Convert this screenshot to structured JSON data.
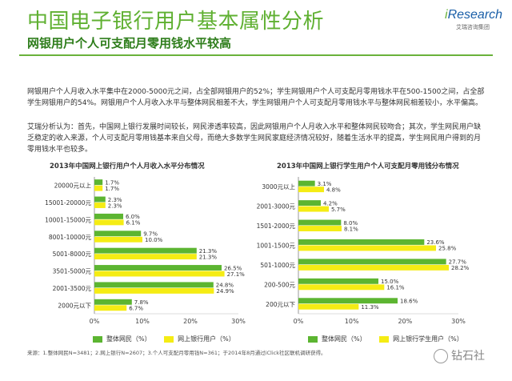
{
  "header": {
    "title": "中国电子银行用户基本属性分析",
    "subtitle": "网银用户个人可支配月零用钱水平较高"
  },
  "logo": {
    "word_lead": "i",
    "word_rest": "Research",
    "sub": "艾瑞咨询集团"
  },
  "body": {
    "para1": "网银用户个人月收入水平集中在2000-5000元之间，占全部网银用户的52%；学生网银用户个人可支配月零用钱水平在500-1500之间，占全部学生网银用户的54%。网银用户个人月收入水平与整体网民相差不大，学生网银用户个人可支配月零用钱水平与整体网民相差较小，水平偏高。",
    "para2": "艾瑞分析认为：首先，中国网上银行发展时间较长，网民渗透率较高，因此网银用户个人月收入水平和整体网民较吻合；其次，学生网民用户缺乏稳定的收入来源，个人可支配月零用钱基本来自父母，而绝大多数学生网民家庭经济情况较好，随着生活水平的提高，学生网民用户得到的月零用钱水平也较多。"
  },
  "legend": {
    "left_a": "整体网民（%）",
    "left_b": "网上银行用户（%）",
    "right_a": "整体网民（%）",
    "right_b": "网上银行学生用户（%）"
  },
  "colors": {
    "green": "#5cb531",
    "yellow": "#f5ec14",
    "title_green": "#5fb031"
  },
  "footnote": "来源：1.整体网民N=3481；2.网上银行N=2607；3.个人可支配月零用钱N=361；于2014年8月通过iClick社区联机调研获得。",
  "watermark": "钻石社",
  "chart_data": [
    {
      "type": "bar",
      "orientation": "horizontal",
      "title": "2013年中国网上银行用户个人月收入水平分布情况",
      "categories": [
        "20000元以上",
        "15001-20000元",
        "10001-15000元",
        "8001-10000元",
        "5001-8000元",
        "3501-5000元",
        "2001-3500元",
        "2000元以下"
      ],
      "series": [
        {
          "name": "整体网民（%）",
          "values": [
            1.7,
            2.3,
            6.0,
            9.7,
            21.3,
            26.5,
            24.8,
            7.8
          ]
        },
        {
          "name": "网上银行用户（%）",
          "values": [
            1.7,
            2.3,
            6.1,
            10.0,
            21.3,
            27.1,
            24.9,
            6.7
          ]
        }
      ],
      "value_labels": [
        [
          "1.7%",
          "2.3%",
          "6.0%",
          "9.7%",
          "21.3%",
          "26.5%",
          "24.8%",
          "7.8%"
        ],
        [
          "1.7%",
          "2.3%",
          "6.1%",
          "10.0%",
          "21.3%",
          "27.1%",
          "24.9%",
          "6.7%"
        ]
      ],
      "xlim": [
        0,
        30
      ],
      "xticks": [
        "0%",
        "10%",
        "20%",
        "30%"
      ],
      "legend": "bottom"
    },
    {
      "type": "bar",
      "orientation": "horizontal",
      "title": "2013年中国网上银行学生用户个人可支配月零用钱分布情况",
      "categories": [
        "3000元以上",
        "2001-3000元",
        "1501-2000元",
        "1001-1500元",
        "501-1000元",
        "200-500元",
        "200元以下"
      ],
      "series": [
        {
          "name": "整体网民（%）",
          "values": [
            3.1,
            4.2,
            8.0,
            23.6,
            27.7,
            15.0,
            18.6
          ]
        },
        {
          "name": "网上银行学生用户（%）",
          "values": [
            4.8,
            5.7,
            8.1,
            25.8,
            28.2,
            16.1,
            11.3
          ]
        }
      ],
      "value_labels": [
        [
          "3.1%",
          "4.2%",
          "8.0%",
          "23.6%",
          "27.7%",
          "15.0%",
          "18.6%"
        ],
        [
          "4.8%",
          "5.7%",
          "8.1%",
          "25.8%",
          "28.2%",
          "16.1%",
          "11.3%"
        ]
      ],
      "xlim": [
        0,
        30
      ],
      "xticks": [
        "0%",
        "10%",
        "20%",
        "30%"
      ],
      "legend": "bottom"
    }
  ]
}
